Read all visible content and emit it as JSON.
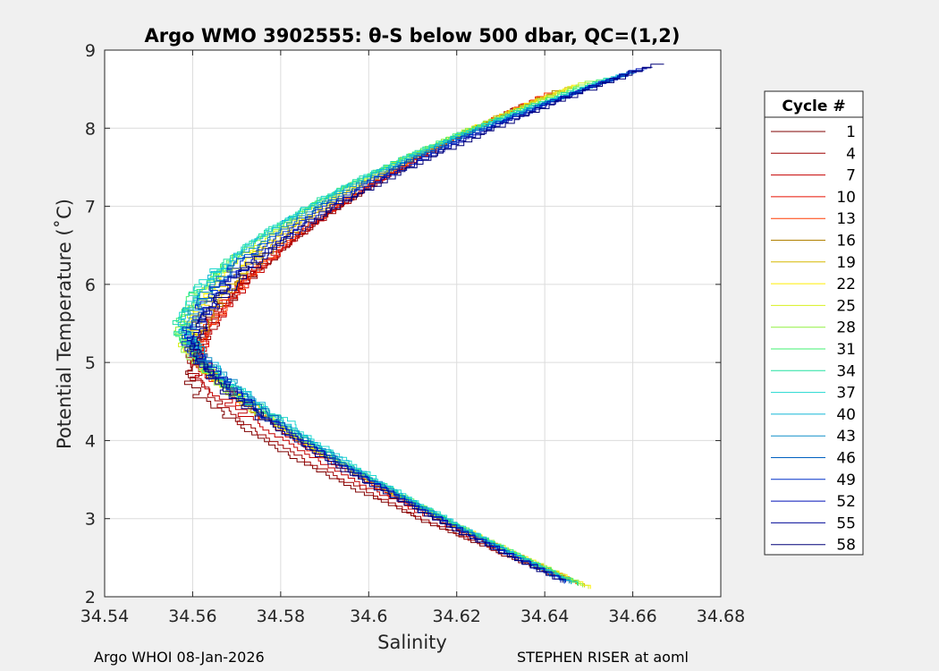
{
  "chart_data": {
    "type": "line",
    "title": "Argo WMO 3902555: θ-S below 500 dbar,  QC=(1,2)",
    "xlabel": "Salinity",
    "ylabel": "Potential Temperature (˚C)",
    "xlim": [
      34.54,
      34.68
    ],
    "ylim": [
      2,
      9
    ],
    "xticks": [
      "34.54",
      "34.56",
      "34.58",
      "34.6",
      "34.62",
      "34.64",
      "34.66",
      "34.68"
    ],
    "yticks": [
      "2",
      "3",
      "4",
      "5",
      "6",
      "7",
      "8",
      "9"
    ],
    "grid": true,
    "legend": {
      "title": "Cycle #",
      "placement": "right-outside"
    },
    "series": [
      {
        "name": "1",
        "color": "#7f0000",
        "profile": {
          "s_top": 34.634,
          "t_top": 8.25,
          "s_min": 34.559,
          "t_min": 4.75,
          "s_bot": 34.644,
          "t_bot": 2.22
        }
      },
      {
        "name": "4",
        "color": "#9e0000",
        "profile": {
          "s_top": 34.636,
          "t_top": 8.3,
          "s_min": 34.56,
          "t_min": 4.8,
          "s_bot": 34.645,
          "t_bot": 2.2
        }
      },
      {
        "name": "7",
        "color": "#c40000",
        "profile": {
          "s_top": 34.638,
          "t_top": 8.35,
          "s_min": 34.561,
          "t_min": 4.9,
          "s_bot": 34.646,
          "t_bot": 2.2
        }
      },
      {
        "name": "10",
        "color": "#e81000",
        "profile": {
          "s_top": 34.64,
          "t_top": 8.4,
          "s_min": 34.562,
          "t_min": 5.0,
          "s_bot": 34.646,
          "t_bot": 2.18
        }
      },
      {
        "name": "13",
        "color": "#ff3a00",
        "profile": {
          "s_top": 34.642,
          "t_top": 8.45,
          "s_min": 34.562,
          "t_min": 5.05,
          "s_bot": 34.647,
          "t_bot": 2.16
        }
      },
      {
        "name": "16",
        "color": "#b08000",
        "profile": {
          "s_top": 34.644,
          "t_top": 8.48,
          "s_min": 34.561,
          "t_min": 5.1,
          "s_bot": 34.648,
          "t_bot": 2.14
        }
      },
      {
        "name": "19",
        "color": "#d6b800",
        "profile": {
          "s_top": 34.646,
          "t_top": 8.52,
          "s_min": 34.56,
          "t_min": 5.15,
          "s_bot": 34.649,
          "t_bot": 2.12
        }
      },
      {
        "name": "22",
        "color": "#ffee00",
        "profile": {
          "s_top": 34.648,
          "t_top": 8.55,
          "s_min": 34.559,
          "t_min": 5.2,
          "s_bot": 34.65,
          "t_bot": 2.1
        }
      },
      {
        "name": "25",
        "color": "#d8f020",
        "profile": {
          "s_top": 34.65,
          "t_top": 8.58,
          "s_min": 34.558,
          "t_min": 5.25,
          "s_bot": 34.65,
          "t_bot": 2.1
        }
      },
      {
        "name": "28",
        "color": "#90f040",
        "profile": {
          "s_top": 34.652,
          "t_top": 8.6,
          "s_min": 34.557,
          "t_min": 5.3,
          "s_bot": 34.649,
          "t_bot": 2.12
        }
      },
      {
        "name": "31",
        "color": "#40f070",
        "profile": {
          "s_top": 34.654,
          "t_top": 8.62,
          "s_min": 34.557,
          "t_min": 5.35,
          "s_bot": 34.648,
          "t_bot": 2.14
        }
      },
      {
        "name": "34",
        "color": "#20e0a0",
        "profile": {
          "s_top": 34.656,
          "t_top": 8.64,
          "s_min": 34.557,
          "t_min": 5.4,
          "s_bot": 34.647,
          "t_bot": 2.15
        }
      },
      {
        "name": "37",
        "color": "#20d8d0",
        "profile": {
          "s_top": 34.658,
          "t_top": 8.66,
          "s_min": 34.558,
          "t_min": 5.45,
          "s_bot": 34.646,
          "t_bot": 2.16
        }
      },
      {
        "name": "40",
        "color": "#10b8d8",
        "profile": {
          "s_top": 34.659,
          "t_top": 8.68,
          "s_min": 34.558,
          "t_min": 5.4,
          "s_bot": 34.646,
          "t_bot": 2.16
        }
      },
      {
        "name": "43",
        "color": "#1090c8",
        "profile": {
          "s_top": 34.66,
          "t_top": 8.7,
          "s_min": 34.559,
          "t_min": 5.35,
          "s_bot": 34.645,
          "t_bot": 2.17
        }
      },
      {
        "name": "46",
        "color": "#0060c0",
        "profile": {
          "s_top": 34.661,
          "t_top": 8.72,
          "s_min": 34.559,
          "t_min": 5.3,
          "s_bot": 34.645,
          "t_bot": 2.17
        }
      },
      {
        "name": "49",
        "color": "#0030c8",
        "profile": {
          "s_top": 34.662,
          "t_top": 8.74,
          "s_min": 34.559,
          "t_min": 5.25,
          "s_bot": 34.645,
          "t_bot": 2.17
        }
      },
      {
        "name": "52",
        "color": "#0010b8",
        "profile": {
          "s_top": 34.663,
          "t_top": 8.76,
          "s_min": 34.56,
          "t_min": 5.2,
          "s_bot": 34.645,
          "t_bot": 2.18
        }
      },
      {
        "name": "55",
        "color": "#000898",
        "profile": {
          "s_top": 34.664,
          "t_top": 8.78,
          "s_min": 34.56,
          "t_min": 5.15,
          "s_bot": 34.644,
          "t_bot": 2.18
        }
      },
      {
        "name": "58",
        "color": "#000078",
        "profile": {
          "s_top": 34.667,
          "t_top": 8.82,
          "s_min": 34.56,
          "t_min": 5.1,
          "s_bot": 34.644,
          "t_bot": 2.18
        }
      }
    ]
  },
  "footer": {
    "left": "Argo WHOI 08-Jan-2026",
    "right": "STEPHEN RISER at aoml"
  }
}
